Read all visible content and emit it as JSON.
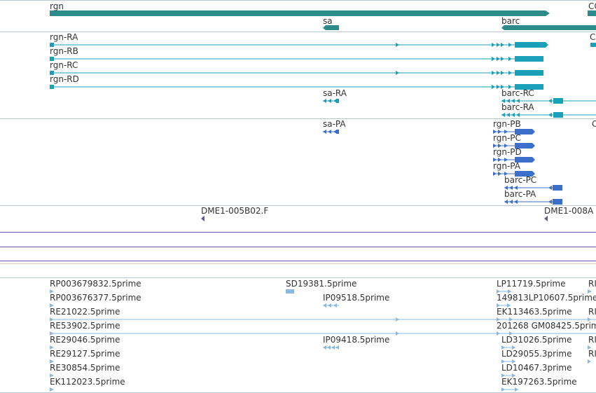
{
  "tracks": {
    "genes": {
      "color": "#2e8b8b",
      "features": [
        {
          "label": "rgn"
        },
        {
          "label": "sa"
        },
        {
          "label": "barc"
        },
        {
          "label": "CG"
        }
      ]
    },
    "transcripts": {
      "color": "#1aa0b8",
      "features": [
        {
          "label": "rgn-RA"
        },
        {
          "label": "rgn-RB"
        },
        {
          "label": "rgn-RC"
        },
        {
          "label": "rgn-RD"
        },
        {
          "label": "sa-RA"
        },
        {
          "label": "barc-RC"
        },
        {
          "label": "barc-RA"
        },
        {
          "label": "C"
        }
      ]
    },
    "proteins": {
      "color": "#3b6fc9",
      "features": [
        {
          "label": "sa-PA"
        },
        {
          "label": "rgn-PB"
        },
        {
          "label": "rgn-PC"
        },
        {
          "label": "rgn-PD"
        },
        {
          "label": "rgn-PA"
        },
        {
          "label": "barc-PC"
        },
        {
          "label": "barc-PA"
        },
        {
          "label": "C"
        }
      ]
    },
    "clones": {
      "color": "#6a4fa8",
      "features": [
        {
          "label": "DME1-005B02.F"
        },
        {
          "label": "DME1-008A"
        }
      ]
    },
    "ests": {
      "color": "#8ab8e0",
      "features": [
        {
          "label": "RP003679832.5prime"
        },
        {
          "label": "SD19381.5prime"
        },
        {
          "label": "LP11719.5prime"
        },
        {
          "label": "RI"
        },
        {
          "label": "RP003676377.5prime"
        },
        {
          "label": "IP09518.5prime"
        },
        {
          "label": "149813LP10607.5prime"
        },
        {
          "label": "RE21022.5prime"
        },
        {
          "label": "EK113463.5prime"
        },
        {
          "label": "RI"
        },
        {
          "label": "RE53902.5prime"
        },
        {
          "label": "201268 GM08425.5prime"
        },
        {
          "label": "RE29046.5prime"
        },
        {
          "label": "IP09418.5prime"
        },
        {
          "label": "LD31026.5prime"
        },
        {
          "label": "RI"
        },
        {
          "label": "RE29127.5prime"
        },
        {
          "label": "LD29055.3prime"
        },
        {
          "label": "RI"
        },
        {
          "label": "RE30854.5prime"
        },
        {
          "label": "LD10467.3prime"
        },
        {
          "label": "EK112023.5prime"
        },
        {
          "label": "EK197263.5prime"
        }
      ]
    }
  },
  "colors": {
    "divider": "#b8c8d0",
    "clone_line": "#6a4fa8",
    "beige_line": "#d8d0b8"
  }
}
